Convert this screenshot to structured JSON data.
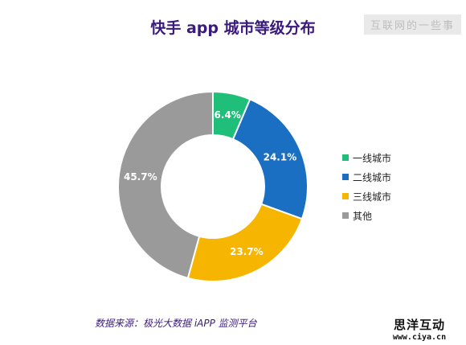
{
  "title": "快手 app 城市等级分布",
  "watermark": "互联网的一些事",
  "source": "数据来源：极光大数据 iAPP 监测平台",
  "logo": {
    "name": "思洋互动",
    "url": "www.ciya.cn"
  },
  "chart_data": {
    "type": "pie",
    "title": "快手 app 城市等级分布",
    "categories": [
      "一线城市",
      "二线城市",
      "三线城市",
      "其他"
    ],
    "values": [
      6.4,
      24.1,
      23.7,
      45.7
    ],
    "labels": [
      "6.4%",
      "24.1%",
      "23.7%",
      "45.7%"
    ],
    "colors": [
      "#1fbf7a",
      "#1a6fc2",
      "#f6b500",
      "#9a9a9a"
    ],
    "legend": "right"
  }
}
